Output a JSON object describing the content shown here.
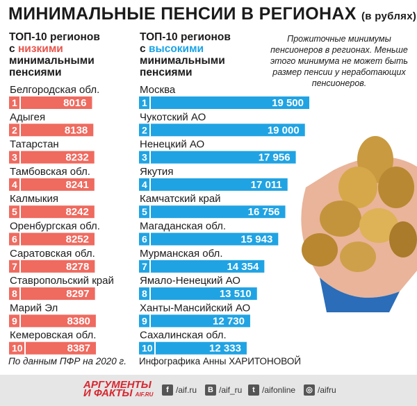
{
  "title": "МИНИМАЛЬНЫЕ ПЕНСИИ В РЕГИОНАХ",
  "title_unit": "(в рублях)",
  "left_header": {
    "line1": "ТОП-10 регионов",
    "prefix": "с ",
    "highlight": "низкими",
    "line3": "минимальными",
    "line4": "пенсиями"
  },
  "right_header": {
    "line1": "ТОП-10 регионов",
    "prefix": "с ",
    "highlight": "высокими",
    "line3": "минимальными",
    "line4": "пенсиями"
  },
  "note": "Прожиточные минимумы пенсионеров в регионах. Меньше этого минимума не может быть размер пенсии у неработающих пенсионеров.",
  "colors": {
    "low": "#ef6a5f",
    "high": "#20a3e3",
    "low_text": "#e8534b",
    "high_text": "#1aa3e6"
  },
  "chart_data": [
    {
      "type": "bar",
      "categories": [
        "Белгородская обл.",
        "Адыгея",
        "Татарстан",
        "Тамбовская обл.",
        "Калмыкия",
        "Оренбургская обл.",
        "Саратовская обл.",
        "Ставропольский край",
        "Марий Эл",
        "Кемеровская обл."
      ],
      "ranks": [
        "1",
        "2",
        "3",
        "4",
        "5",
        "6",
        "7",
        "8",
        "9",
        "10"
      ],
      "values": [
        8016,
        8138,
        8232,
        8241,
        8242,
        8252,
        8278,
        8297,
        8380,
        8387
      ],
      "labels": [
        "8016",
        "8138",
        "8232",
        "8241",
        "8242",
        "8252",
        "8278",
        "8297",
        "8380",
        "8387"
      ]
    },
    {
      "type": "bar",
      "categories": [
        "Москва",
        "Чукотский АО",
        "Ненецкий АО",
        "Якутия",
        "Камчатский край",
        "Магаданская обл.",
        "Мурманская обл.",
        "Ямало-Ненецкий АО",
        "Ханты-Мансийский АО",
        "Сахалинская обл."
      ],
      "ranks": [
        "1",
        "2",
        "3",
        "4",
        "5",
        "6",
        "7",
        "8",
        "9",
        "10"
      ],
      "values": [
        19500,
        19000,
        17956,
        17011,
        16756,
        15943,
        14354,
        13510,
        12730,
        12333
      ],
      "labels": [
        "19 500",
        "19 000",
        "17 956",
        "17 011",
        "16 756",
        "15 943",
        "14 354",
        "13 510",
        "12 730",
        "12 333"
      ]
    }
  ],
  "footer": {
    "source": "По данным ПФР на 2020 г.",
    "credit": "Инфографика Анны ХАРИТОНОВОЙ"
  },
  "brand": {
    "line1": "АРГУМЕНТЫ",
    "line2": "И ФАКТЫ",
    "site": "AIF.RU"
  },
  "social": [
    {
      "icon": "f",
      "label": "/aif.ru",
      "name": "facebook-icon"
    },
    {
      "icon": "В",
      "label": "/aif_ru",
      "name": "vk-icon"
    },
    {
      "icon": "t",
      "label": "/aifonline",
      "name": "twitter-icon"
    },
    {
      "icon": "◎",
      "label": "/aifru",
      "name": "instagram-icon"
    }
  ]
}
